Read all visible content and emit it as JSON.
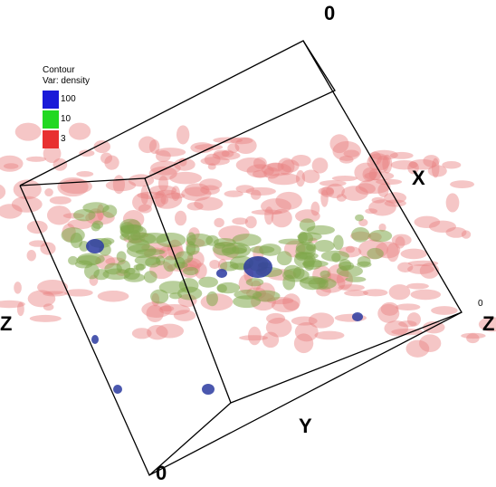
{
  "legend": {
    "title": "Contour",
    "subtitle": "Var: density",
    "levels": [
      {
        "label": "100",
        "color": "#1a1ad8"
      },
      {
        "label": "10",
        "color": "#22d822"
      },
      {
        "label": "3",
        "color": "#e83030"
      }
    ]
  },
  "axis_labels": {
    "top": "0",
    "x": "X",
    "left": "Z",
    "right": "Z",
    "right_small": "0",
    "y": "Y",
    "bottom": "0"
  }
}
